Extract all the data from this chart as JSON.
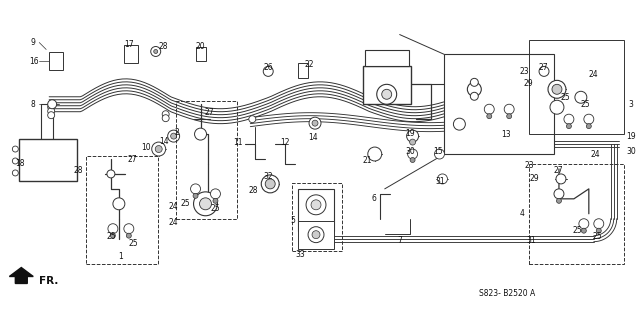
{
  "bg_color": "#ffffff",
  "diagram_code": "S823- B2520 A",
  "fr_label": "FR.",
  "fig_width": 6.4,
  "fig_height": 3.19,
  "dpi": 100,
  "line_color": "#333333",
  "text_color": "#111111"
}
